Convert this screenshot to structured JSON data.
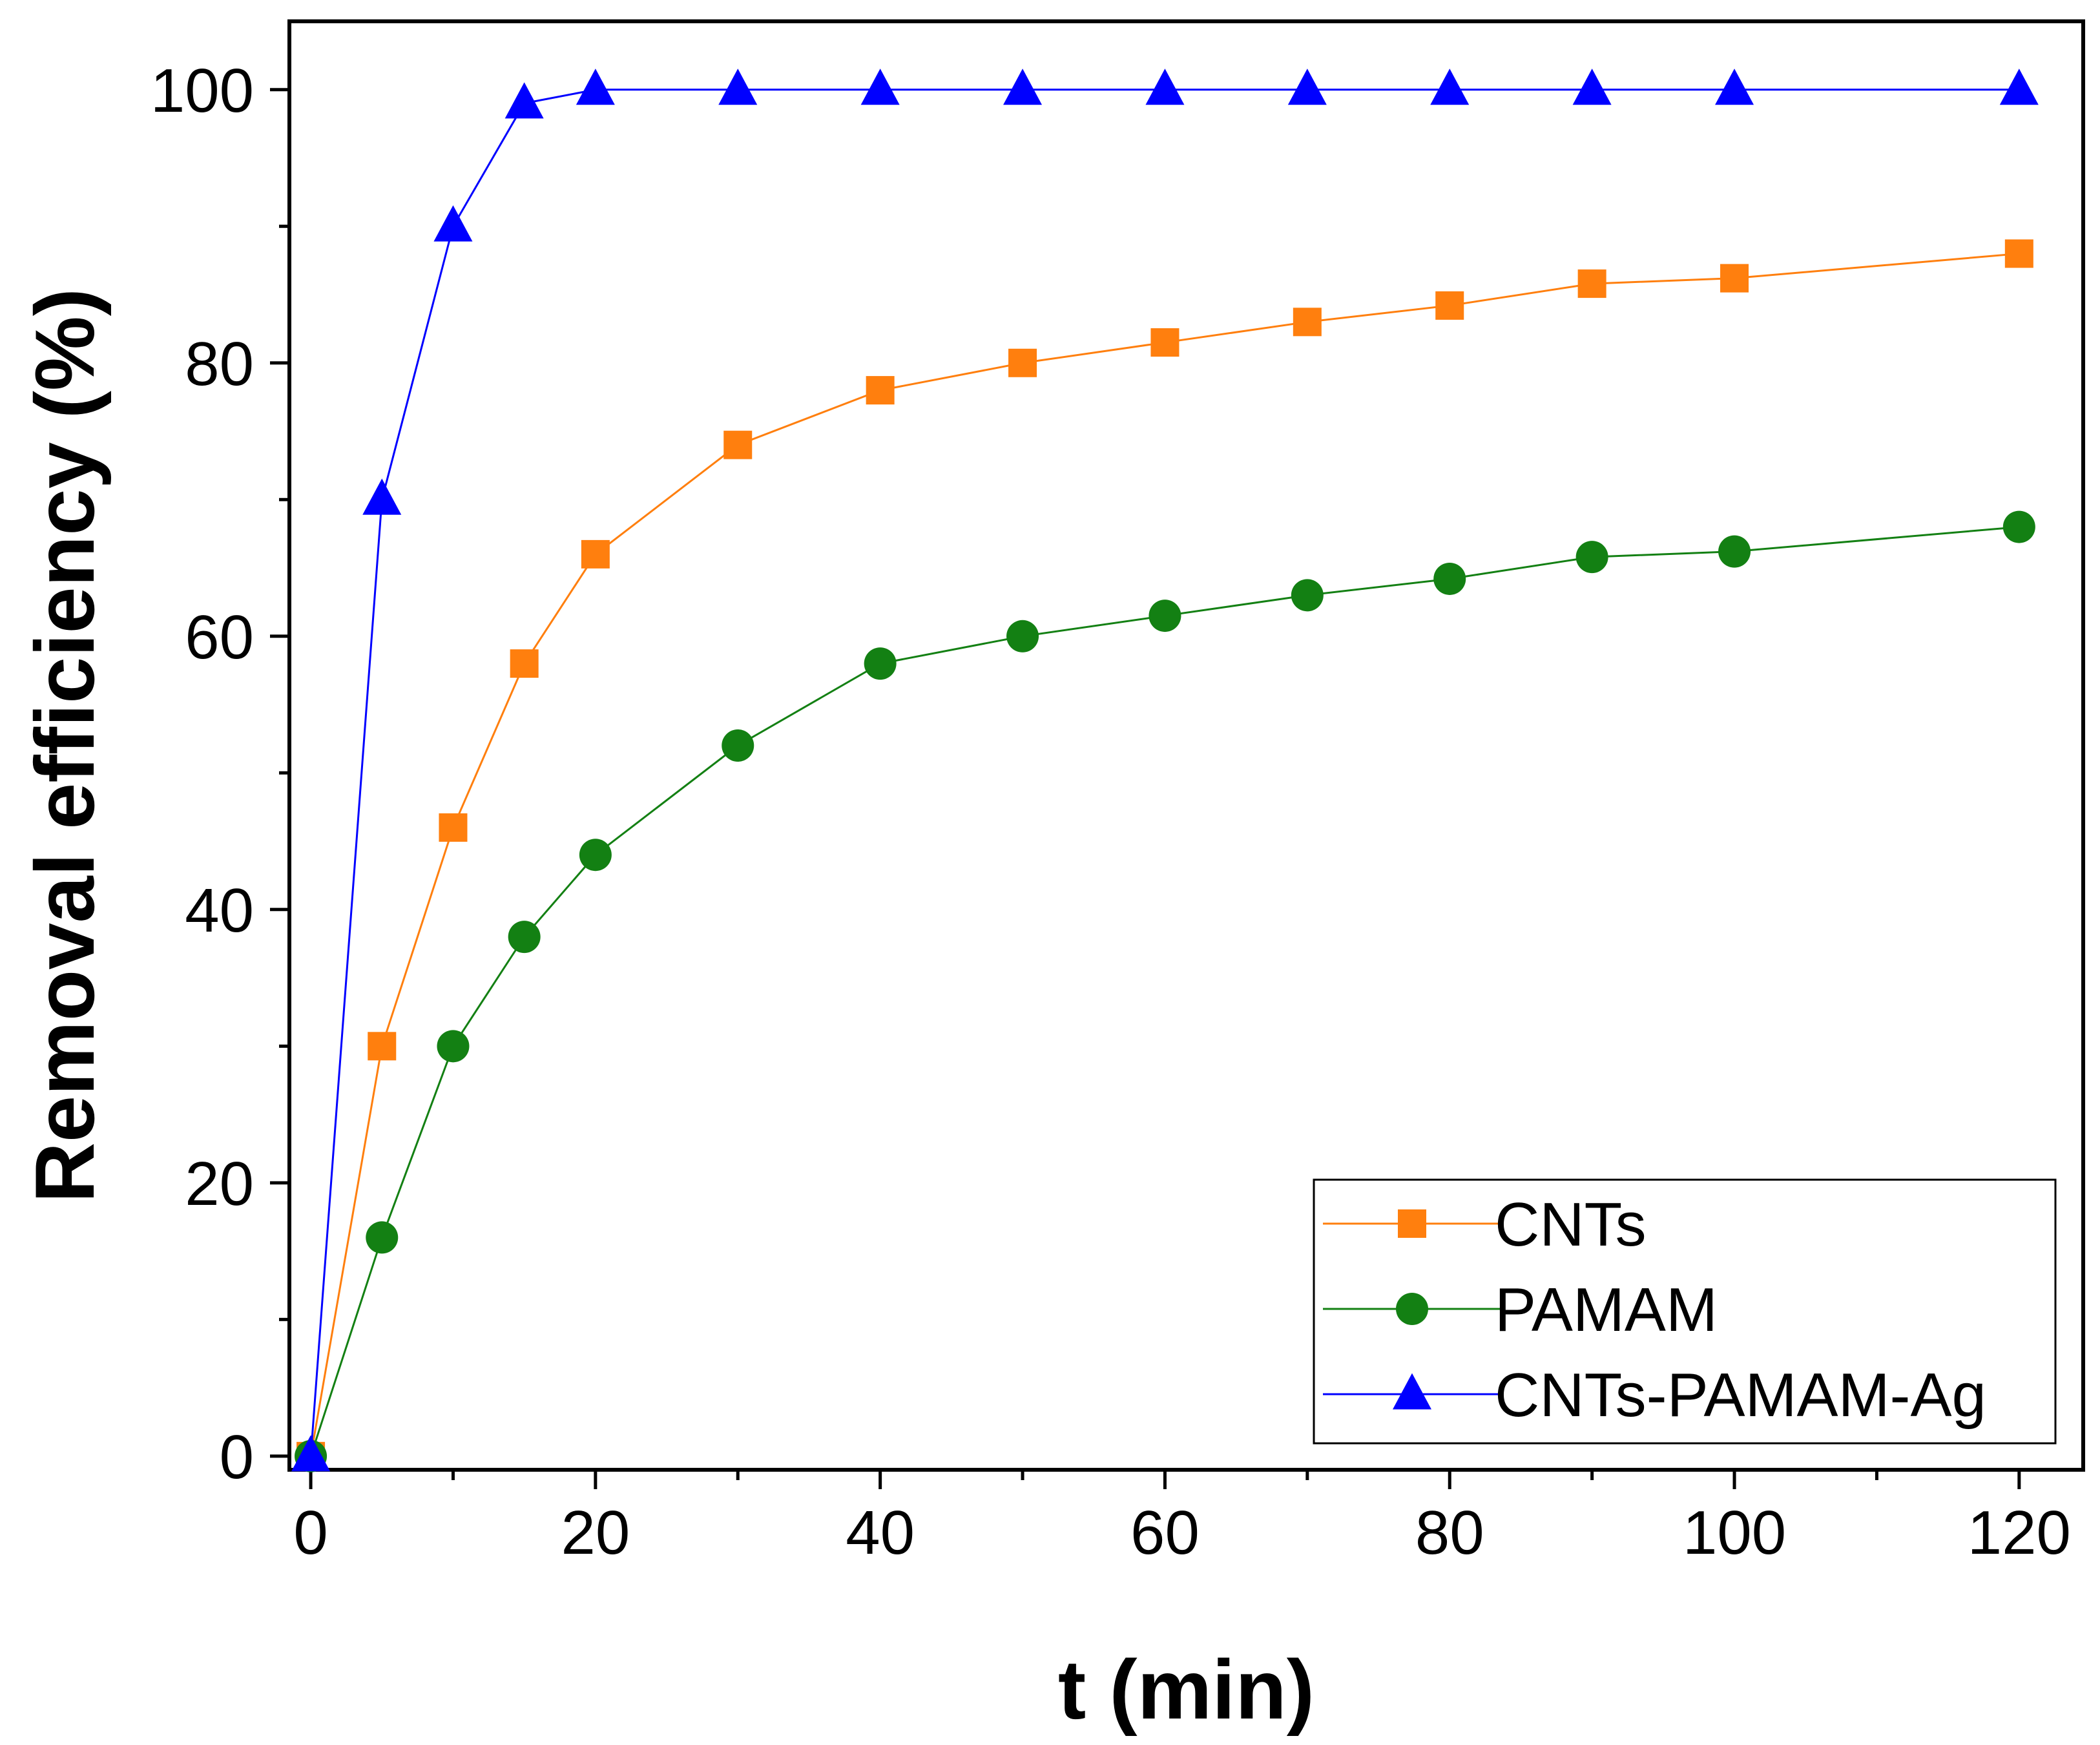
{
  "chart_data": {
    "type": "line",
    "title": "",
    "xlabel": "t (min)",
    "ylabel": "Removal efficiency (%)",
    "xlim": [
      -1.5,
      124.5
    ],
    "ylim": [
      -1,
      105
    ],
    "xticks": [
      0,
      20,
      40,
      60,
      80,
      100,
      120
    ],
    "xtick_labels": [
      "0",
      "20",
      "40",
      "60",
      "80",
      "100",
      "120"
    ],
    "xminor": [
      10,
      30,
      50,
      70,
      90,
      110
    ],
    "yticks": [
      0,
      20,
      40,
      60,
      80,
      100
    ],
    "ytick_labels": [
      "0",
      "20",
      "40",
      "60",
      "80",
      "100"
    ],
    "yminor": [
      10,
      30,
      50,
      70,
      90
    ],
    "grid": false,
    "legend_position": "bottom-right",
    "series": [
      {
        "name": "CNTs",
        "color": "#FF7F0E",
        "marker": "square",
        "x": [
          0,
          5,
          10,
          15,
          20,
          30,
          40,
          50,
          60,
          70,
          80,
          90,
          100,
          120
        ],
        "values": [
          0,
          30,
          46,
          58,
          66,
          74,
          78,
          80,
          81.5,
          83,
          84.2,
          85.8,
          86.2,
          88
        ]
      },
      {
        "name": "PAMAM",
        "color": "#138013",
        "marker": "circle",
        "x": [
          0,
          5,
          10,
          15,
          20,
          30,
          40,
          50,
          60,
          70,
          80,
          90,
          100,
          120
        ],
        "values": [
          0,
          16,
          30,
          38,
          44,
          52,
          58,
          60,
          61.5,
          63,
          64.2,
          65.8,
          66.2,
          68
        ]
      },
      {
        "name": "CNTs-PAMAM-Ag",
        "color": "#0000FF",
        "marker": "triangle",
        "x": [
          0,
          5,
          10,
          15,
          20,
          30,
          40,
          50,
          60,
          70,
          80,
          90,
          100,
          120
        ],
        "values": [
          0,
          70,
          90,
          99,
          100,
          100,
          100,
          100,
          100,
          100,
          100,
          100,
          100,
          100
        ]
      }
    ]
  }
}
